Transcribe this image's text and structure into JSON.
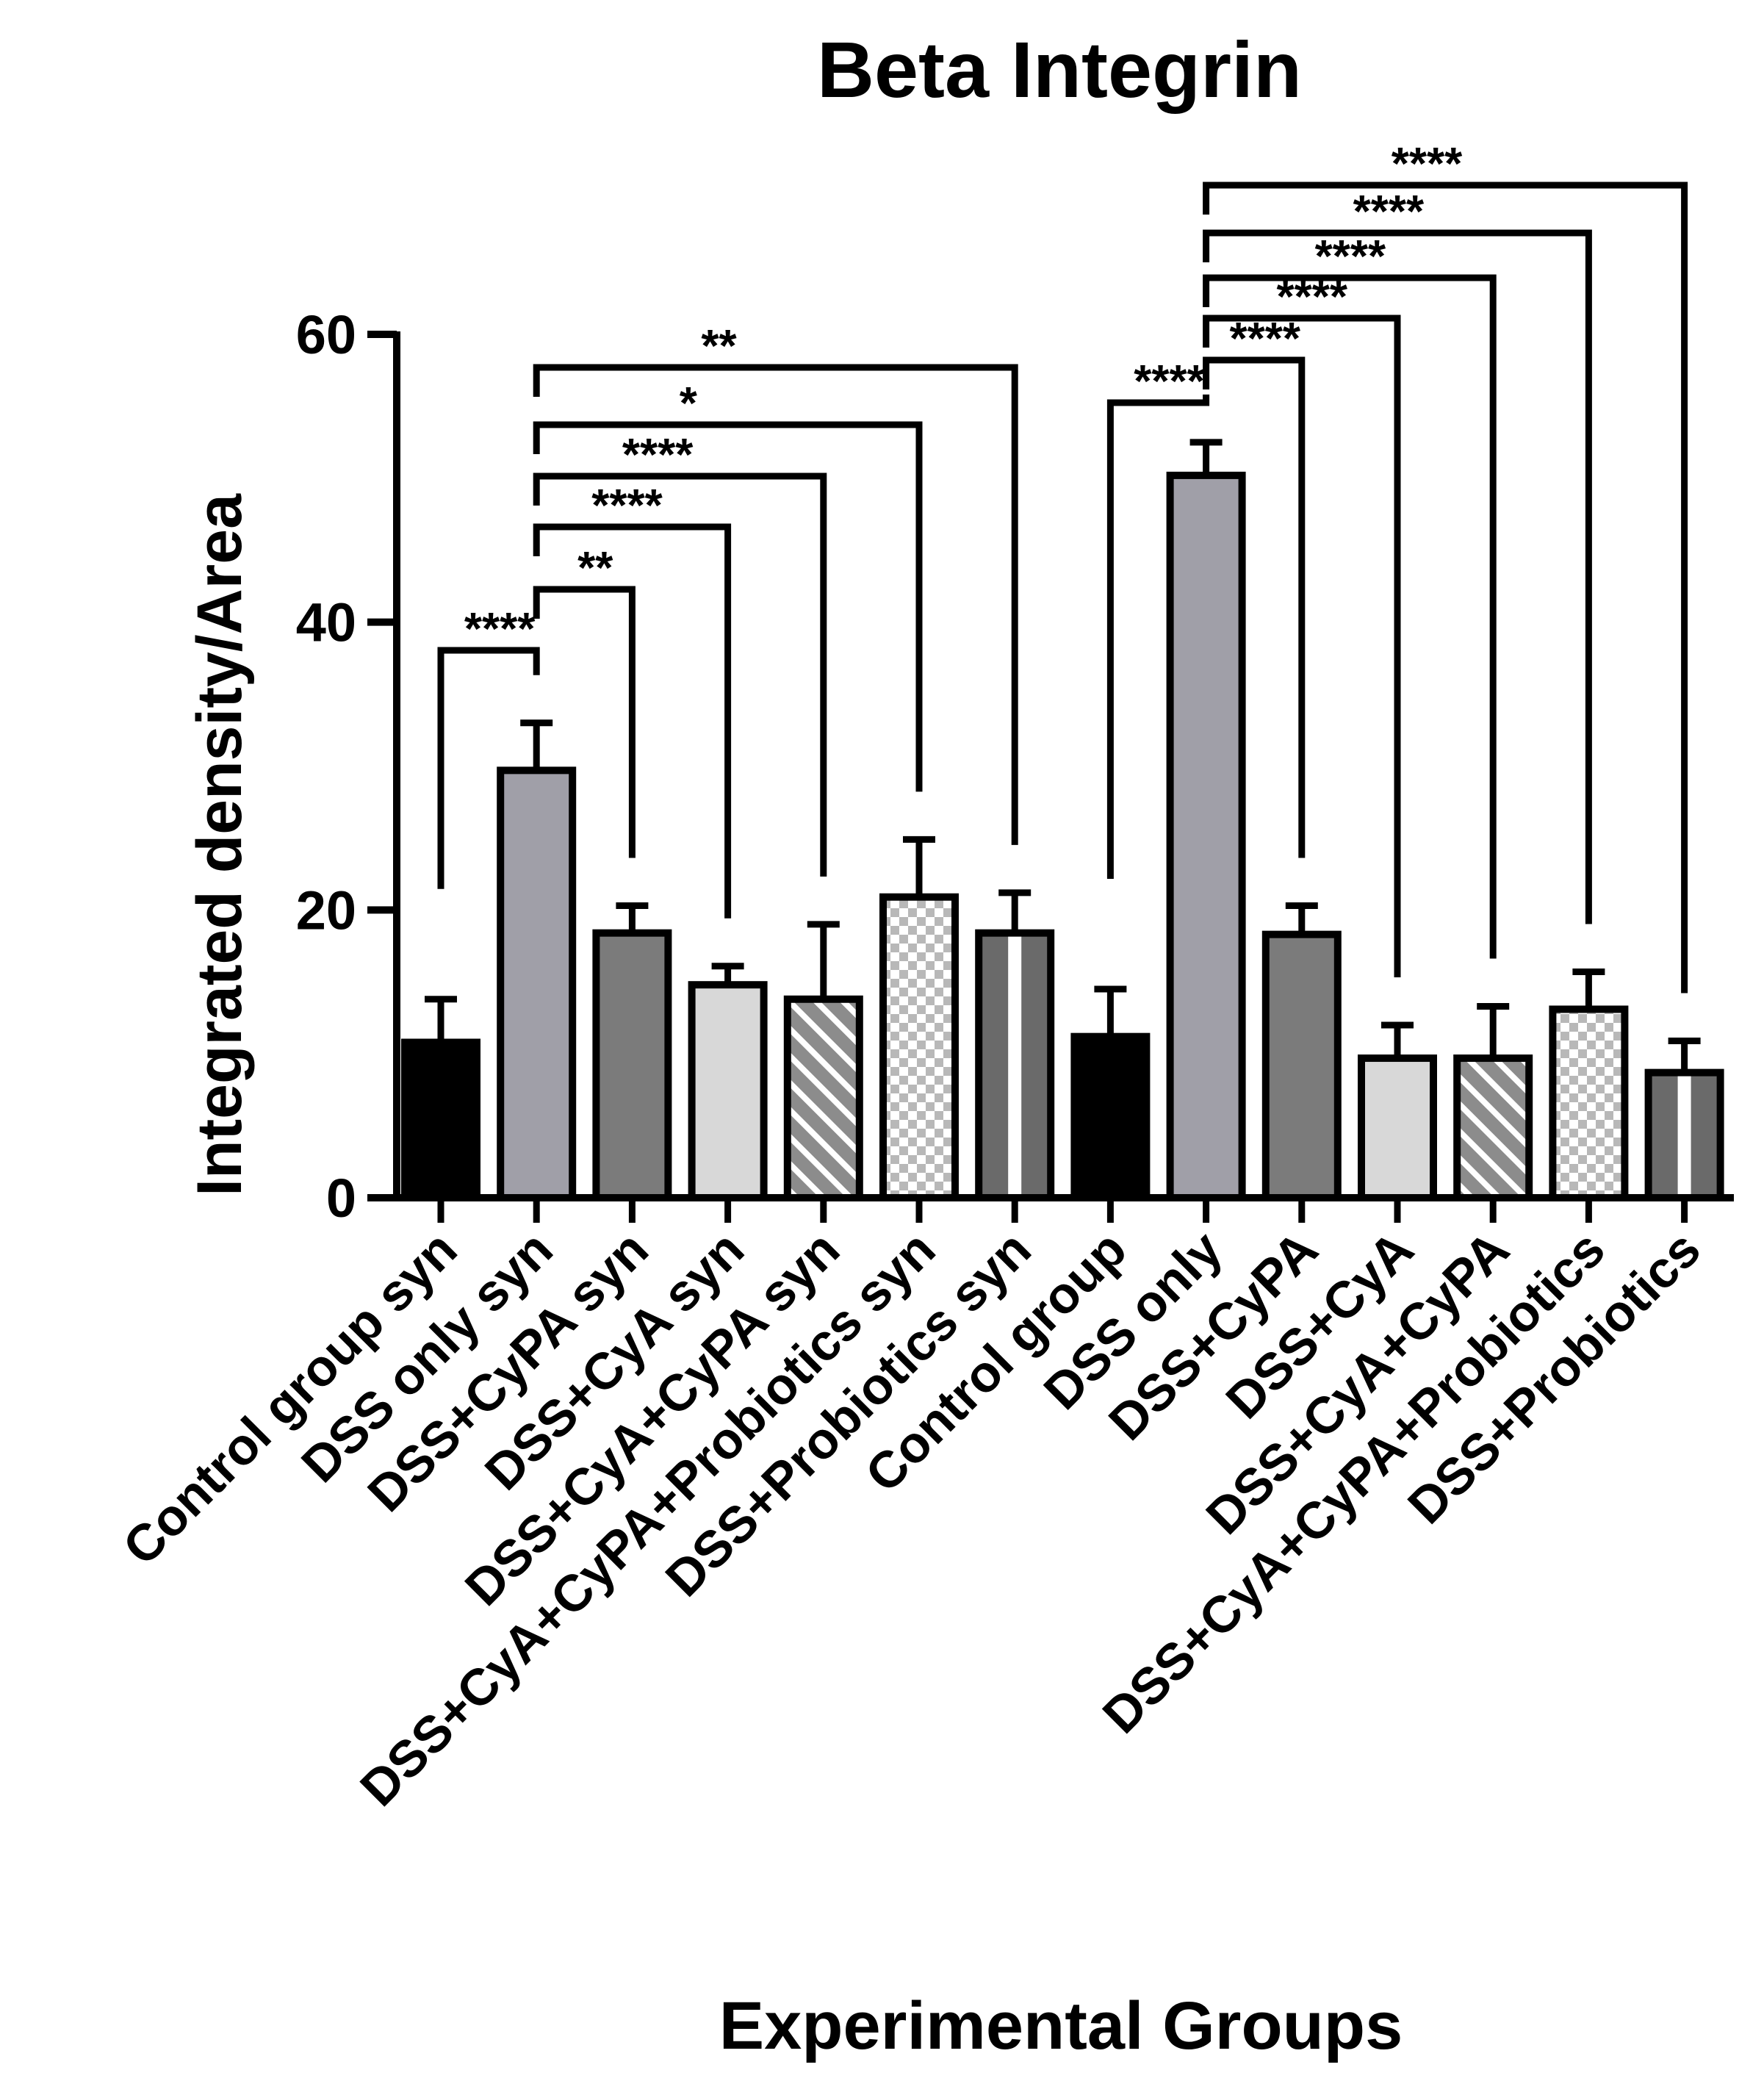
{
  "chart_data": {
    "type": "bar",
    "title": "Beta Integrin",
    "xlabel": "Experimental Groups",
    "ylabel": "Integrated density/Area",
    "ylim": [
      0,
      60
    ],
    "yticks": [
      0,
      20,
      40,
      60
    ],
    "grid": false,
    "categories": [
      "Control group syn",
      "DSS only syn",
      "DSS+CyPA syn",
      "DSS+CyA syn",
      "DSS+CyA+CyPA syn",
      "DSS+CyA+CyPA+Probiotics syn",
      "DSS+Probiotics syn",
      "Control group",
      "DSS only",
      "DSS+CyPA",
      "DSS+CyA",
      "DSS+CyA+CyPA",
      "DSS+CyA+CyPA+Probiotics",
      "DSS+Probiotics"
    ],
    "values": [
      10.8,
      29.7,
      18.4,
      14.8,
      13.8,
      20.9,
      18.4,
      11.2,
      50.2,
      18.3,
      9.7,
      9.7,
      13.1,
      8.7
    ],
    "errors": [
      3.0,
      3.3,
      1.9,
      1.3,
      5.2,
      4.0,
      2.8,
      3.3,
      2.3,
      2.0,
      2.3,
      3.6,
      2.6,
      2.2
    ],
    "fills": [
      "solid-black",
      "solid-gray",
      "solid-darkgray",
      "solid-lightgray",
      "hatched",
      "checkered",
      "vertical-stripes",
      "solid-black",
      "solid-gray",
      "solid-darkgray",
      "solid-lightgray",
      "hatched",
      "checkered",
      "vertical-stripes"
    ],
    "colors": {
      "black": "#000000",
      "gray": "#a09fa8",
      "darkgray": "#7b7b7b",
      "lightgray": "#d8d8d8",
      "hatch_bg": "#8c8c8c",
      "hatch_line": "#ffffff",
      "checker_a": "#b8b8b8",
      "checker_b": "#ffffff",
      "stripe_dark": "#6a6a6a",
      "stripe_light": "#ffffff"
    },
    "comparisons": [
      {
        "from": 0,
        "to": 1,
        "label": "****"
      },
      {
        "from": 1,
        "to": 2,
        "label": "**"
      },
      {
        "from": 1,
        "to": 3,
        "label": "****"
      },
      {
        "from": 1,
        "to": 4,
        "label": "****"
      },
      {
        "from": 1,
        "to": 5,
        "label": "*"
      },
      {
        "from": 1,
        "to": 6,
        "label": "**"
      },
      {
        "from": 7,
        "to": 8,
        "label": "****"
      },
      {
        "from": 8,
        "to": 9,
        "label": "****"
      },
      {
        "from": 8,
        "to": 10,
        "label": "****"
      },
      {
        "from": 8,
        "to": 11,
        "label": "****"
      },
      {
        "from": 8,
        "to": 12,
        "label": "****"
      },
      {
        "from": 8,
        "to": 13,
        "label": "****"
      }
    ]
  }
}
